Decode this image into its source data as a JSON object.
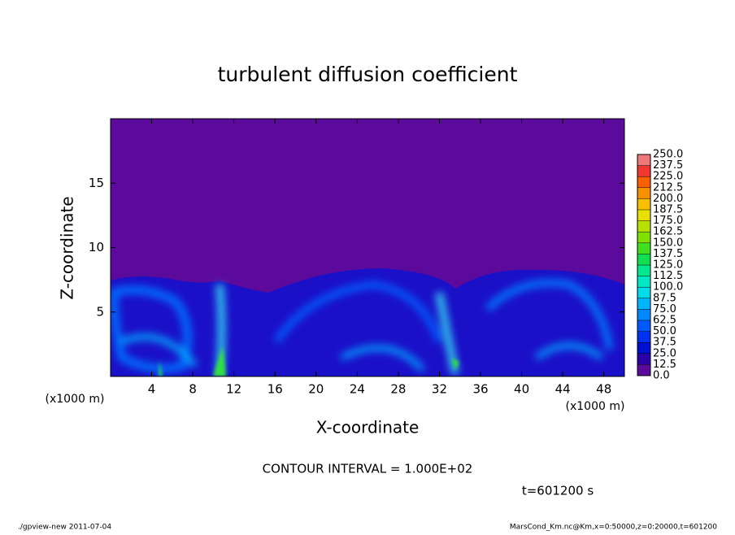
{
  "chart_data": {
    "type": "contour",
    "title": "turbulent diffusion coefficient",
    "xlabel": "X-coordinate",
    "ylabel": "Z-coordinate",
    "x_unit": "(x1000 m)",
    "y_unit": "(x1000 m)",
    "xlim": [
      0,
      50
    ],
    "ylim": [
      0,
      20
    ],
    "xticks": [
      4,
      8,
      12,
      16,
      20,
      24,
      28,
      32,
      36,
      40,
      44,
      48
    ],
    "yticks": [
      5,
      10,
      15
    ],
    "colorbar": {
      "levels": [
        {
          "value": 0,
          "label": "0.0"
        },
        {
          "value": 12.5,
          "label": "12.5"
        },
        {
          "value": 25,
          "label": "25.0"
        },
        {
          "value": 37.5,
          "label": "37.5"
        },
        {
          "value": 50,
          "label": "50.0"
        },
        {
          "value": 62.5,
          "label": "62.5"
        },
        {
          "value": 75,
          "label": "75.0"
        },
        {
          "value": 87.5,
          "label": "87.5"
        },
        {
          "value": 100,
          "label": "100.0"
        },
        {
          "value": 112.5,
          "label": "112.5"
        },
        {
          "value": 125,
          "label": "125.0"
        },
        {
          "value": 137.5,
          "label": "137.5"
        },
        {
          "value": 150,
          "label": "150.0"
        },
        {
          "value": 162.5,
          "label": "162.5"
        },
        {
          "value": 175,
          "label": "175.0"
        },
        {
          "value": 187.5,
          "label": "187.5"
        },
        {
          "value": 200,
          "label": "200.0"
        },
        {
          "value": 212.5,
          "label": "212.5"
        },
        {
          "value": 225,
          "label": "225.0"
        },
        {
          "value": 237.5,
          "label": "237.5"
        },
        {
          "value": 250,
          "label": "250.0"
        }
      ],
      "colors": [
        "#5c0a9c",
        "#2a00a8",
        "#0010d0",
        "#0030f0",
        "#0058ff",
        "#0088ff",
        "#00b4ff",
        "#00dcec",
        "#00e8c4",
        "#00e890",
        "#10e050",
        "#40e020",
        "#80e000",
        "#b8e000",
        "#e8e000",
        "#f8c000",
        "#f89000",
        "#f86000",
        "#f03830",
        "#f07878"
      ]
    },
    "contour_interval": "CONTOUR INTERVAL = 1.000E+02",
    "time_label": "t=601200 s",
    "footer_left": "./gpview-new  2011-07-04",
    "footer_right": "MarsCond_Km.nc@Km,x=0:50000,z=0:20000,t=601200"
  }
}
